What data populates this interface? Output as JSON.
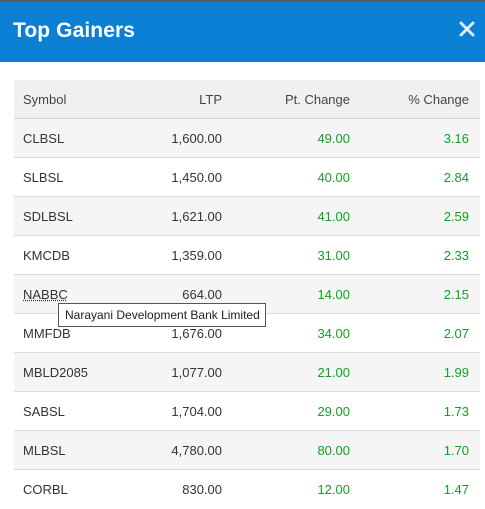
{
  "header": {
    "title": "Top Gainers",
    "close_icon": "close-icon"
  },
  "columns": {
    "symbol": "Symbol",
    "ltp": "LTP",
    "pt_change": "Pt. Change",
    "pct_change": "% Change"
  },
  "rows": [
    {
      "symbol": "CLBSL",
      "ltp": "1,600.00",
      "pt_change": "49.00",
      "pct_change": "3.16"
    },
    {
      "symbol": "SLBSL",
      "ltp": "1,450.00",
      "pt_change": "40.00",
      "pct_change": "2.84"
    },
    {
      "symbol": "SDLBSL",
      "ltp": "1,621.00",
      "pt_change": "41.00",
      "pct_change": "2.59"
    },
    {
      "symbol": "KMCDB",
      "ltp": "1,359.00",
      "pt_change": "31.00",
      "pct_change": "2.33"
    },
    {
      "symbol": "NABBC",
      "ltp": "664.00",
      "pt_change": "14.00",
      "pct_change": "2.15"
    },
    {
      "symbol": "MMFDB",
      "ltp": "1,676.00",
      "pt_change": "34.00",
      "pct_change": "2.07"
    },
    {
      "symbol": "MBLD2085",
      "ltp": "1,077.00",
      "pt_change": "21.00",
      "pct_change": "1.99"
    },
    {
      "symbol": "SABSL",
      "ltp": "1,704.00",
      "pt_change": "29.00",
      "pct_change": "1.73"
    },
    {
      "symbol": "MLBSL",
      "ltp": "4,780.00",
      "pt_change": "80.00",
      "pct_change": "1.70"
    },
    {
      "symbol": "CORBL",
      "ltp": "830.00",
      "pt_change": "12.00",
      "pct_change": "1.47"
    }
  ],
  "tooltip": {
    "text": "Narayani Development Bank Limited"
  },
  "colors": {
    "header_bg": "#0b7fd3",
    "positive": "#11a022"
  }
}
